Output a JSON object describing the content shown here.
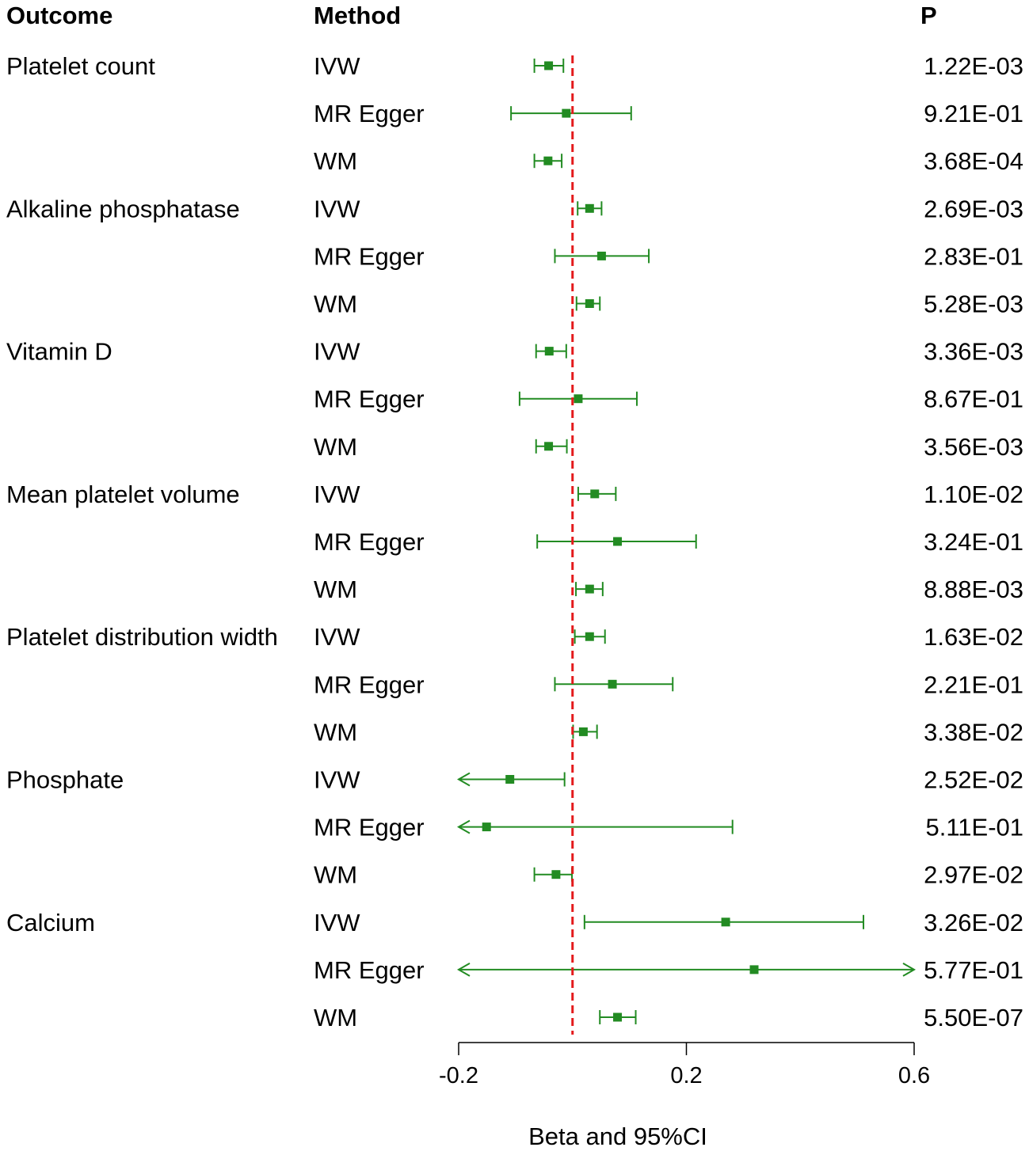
{
  "chart_data": {
    "type": "forest",
    "headers": {
      "outcome": "Outcome",
      "method": "Method",
      "p": "P"
    },
    "xlabel": "Beta and 95%CI",
    "xlim": [
      -0.2,
      0.6
    ],
    "xticks": [
      {
        "value": -0.2,
        "label": "-0.2"
      },
      {
        "value": 0.2,
        "label": "0.2"
      },
      {
        "value": 0.6,
        "label": "0.6"
      }
    ],
    "reference_line": 0,
    "colors": {
      "estimate": "#228B22",
      "reference": "#e41a1c",
      "axis": "#000000"
    },
    "groups": [
      {
        "outcome": "Platelet count",
        "rows": [
          {
            "method": "IVW",
            "beta": -0.042,
            "lower": -0.067,
            "upper": -0.016,
            "p": "1.22E-03"
          },
          {
            "method": "MR Egger",
            "beta": -0.011,
            "lower": -0.108,
            "upper": 0.103,
            "p": "9.21E-01"
          },
          {
            "method": "WM",
            "beta": -0.043,
            "lower": -0.067,
            "upper": -0.019,
            "p": "3.68E-04"
          }
        ]
      },
      {
        "outcome": "Alkaline phosphatase",
        "rows": [
          {
            "method": "IVW",
            "beta": 0.03,
            "lower": 0.009,
            "upper": 0.051,
            "p": "2.69E-03"
          },
          {
            "method": "MR Egger",
            "beta": 0.051,
            "lower": -0.031,
            "upper": 0.134,
            "p": "2.83E-01"
          },
          {
            "method": "WM",
            "beta": 0.03,
            "lower": 0.007,
            "upper": 0.048,
            "p": "5.28E-03"
          }
        ]
      },
      {
        "outcome": "Vitamin D",
        "rows": [
          {
            "method": "IVW",
            "beta": -0.041,
            "lower": -0.064,
            "upper": -0.011,
            "p": "3.36E-03"
          },
          {
            "method": "MR Egger",
            "beta": 0.01,
            "lower": -0.093,
            "upper": 0.113,
            "p": "8.67E-01"
          },
          {
            "method": "WM",
            "beta": -0.042,
            "lower": -0.064,
            "upper": -0.01,
            "p": "3.56E-03"
          }
        ]
      },
      {
        "outcome": "Mean platelet volume",
        "rows": [
          {
            "method": "IVW",
            "beta": 0.039,
            "lower": 0.01,
            "upper": 0.076,
            "p": "1.10E-02"
          },
          {
            "method": "MR Egger",
            "beta": 0.079,
            "lower": -0.062,
            "upper": 0.217,
            "p": "3.24E-01"
          },
          {
            "method": "WM",
            "beta": 0.03,
            "lower": 0.006,
            "upper": 0.053,
            "p": "8.88E-03"
          }
        ]
      },
      {
        "outcome": "Platelet distribution width",
        "rows": [
          {
            "method": "IVW",
            "beta": 0.03,
            "lower": 0.004,
            "upper": 0.057,
            "p": "1.63E-02"
          },
          {
            "method": "MR Egger",
            "beta": 0.07,
            "lower": -0.031,
            "upper": 0.176,
            "p": "2.21E-01"
          },
          {
            "method": "WM",
            "beta": 0.019,
            "lower": 0.001,
            "upper": 0.043,
            "p": "3.38E-02"
          }
        ]
      },
      {
        "outcome": "Phosphate",
        "rows": [
          {
            "method": "IVW",
            "beta": -0.11,
            "lower": -0.22,
            "upper": -0.014,
            "p": "2.52E-02",
            "arrow_lower": true
          },
          {
            "method": "MR Egger",
            "beta": -0.151,
            "lower": -0.35,
            "upper": 0.281,
            "p": "5.11E-01",
            "arrow_lower": true
          },
          {
            "method": "WM",
            "beta": -0.029,
            "lower": -0.067,
            "upper": -0.001,
            "p": "2.97E-02"
          }
        ]
      },
      {
        "outcome": "Calcium",
        "rows": [
          {
            "method": "IVW",
            "beta": 0.269,
            "lower": 0.021,
            "upper": 0.511,
            "p": "3.26E-02"
          },
          {
            "method": "MR Egger",
            "beta": 0.319,
            "lower": -0.5,
            "upper": 0.9,
            "p": "5.77E-01",
            "arrow_lower": true,
            "arrow_upper": true
          },
          {
            "method": "WM",
            "beta": 0.079,
            "lower": 0.048,
            "upper": 0.111,
            "p": "5.50E-07"
          }
        ]
      }
    ]
  }
}
